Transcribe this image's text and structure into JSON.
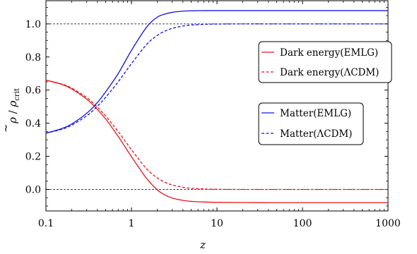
{
  "chart_data": {
    "type": "line",
    "xscale": "log",
    "xlim": [
      0.1,
      1000
    ],
    "ylim": [
      -0.13,
      1.14
    ],
    "xlabel": "z",
    "ylabel": "ρ̃ / ρcrit",
    "ylabel_parts": {
      "tilde": "~",
      "num": "ρ",
      "sep": " / ",
      "den": "ρ",
      "sub": "crit"
    },
    "xticks": [
      0.1,
      1,
      10,
      100,
      1000
    ],
    "xtick_labels": [
      "0.1",
      "1",
      "10",
      "100",
      "1000"
    ],
    "yticks": [
      0.0,
      0.2,
      0.4,
      0.6,
      0.8,
      1.0
    ],
    "ytick_labels": [
      "0.0",
      "0.2",
      "0.4",
      "0.6",
      "0.8",
      "1.0"
    ],
    "reference_lines": [
      0.0,
      1.0
    ],
    "grid": false,
    "legends": [
      {
        "placement": "upper-right",
        "entries": [
          "Dark energy(EMLG)",
          "Dark energy(ΛCDM)"
        ]
      },
      {
        "placement": "right-middle",
        "entries": [
          "Matter(EMLG)",
          "Matter(ΛCDM)"
        ]
      }
    ],
    "series": [
      {
        "name": "Dark energy(EMLG)",
        "color": "#e8141a",
        "style": "solid",
        "x": [
          0.1,
          0.15,
          0.2,
          0.3,
          0.4,
          0.5,
          0.7,
          1.0,
          1.5,
          2.0,
          2.5,
          3.0,
          4.0,
          5.0,
          7.0,
          10,
          20,
          50,
          100,
          1000
        ],
        "y": [
          0.66,
          0.636,
          0.607,
          0.545,
          0.483,
          0.425,
          0.32,
          0.198,
          0.067,
          -0.002,
          -0.035,
          -0.052,
          -0.066,
          -0.072,
          -0.076,
          -0.078,
          -0.079,
          -0.08,
          -0.08,
          -0.08
        ]
      },
      {
        "name": "Dark energy(ΛCDM)",
        "color": "#e8141a",
        "style": "dashed",
        "x": [
          0.1,
          0.15,
          0.2,
          0.3,
          0.4,
          0.5,
          0.7,
          1.0,
          1.5,
          2.0,
          2.5,
          3.0,
          4.0,
          5.0,
          7.0,
          10,
          20,
          50,
          100,
          1000
        ],
        "y": [
          0.66,
          0.638,
          0.612,
          0.555,
          0.497,
          0.443,
          0.35,
          0.24,
          0.125,
          0.07,
          0.042,
          0.027,
          0.013,
          0.007,
          0.003,
          0.001,
          0.0,
          0.0,
          0.0,
          0.0
        ]
      },
      {
        "name": "Matter(EMLG)",
        "color": "#1414e0",
        "style": "solid",
        "x": [
          0.1,
          0.15,
          0.2,
          0.3,
          0.4,
          0.5,
          0.7,
          1.0,
          1.5,
          2.0,
          2.5,
          3.0,
          4.0,
          5.0,
          7.0,
          10,
          20,
          50,
          100,
          1000
        ],
        "y": [
          0.34,
          0.366,
          0.395,
          0.46,
          0.525,
          0.59,
          0.7,
          0.84,
          0.98,
          1.04,
          1.06,
          1.07,
          1.077,
          1.079,
          1.08,
          1.08,
          1.08,
          1.08,
          1.08,
          1.08
        ]
      },
      {
        "name": "Matter(ΛCDM)",
        "color": "#1414e0",
        "style": "dashed",
        "x": [
          0.1,
          0.15,
          0.2,
          0.3,
          0.4,
          0.5,
          0.7,
          1.0,
          1.5,
          2.0,
          2.5,
          3.0,
          4.0,
          5.0,
          7.0,
          10,
          20,
          50,
          100,
          1000
        ],
        "y": [
          0.34,
          0.362,
          0.388,
          0.445,
          0.503,
          0.557,
          0.65,
          0.76,
          0.875,
          0.93,
          0.958,
          0.973,
          0.987,
          0.993,
          0.997,
          0.999,
          1.0,
          1.0,
          1.0,
          1.0
        ]
      }
    ]
  }
}
